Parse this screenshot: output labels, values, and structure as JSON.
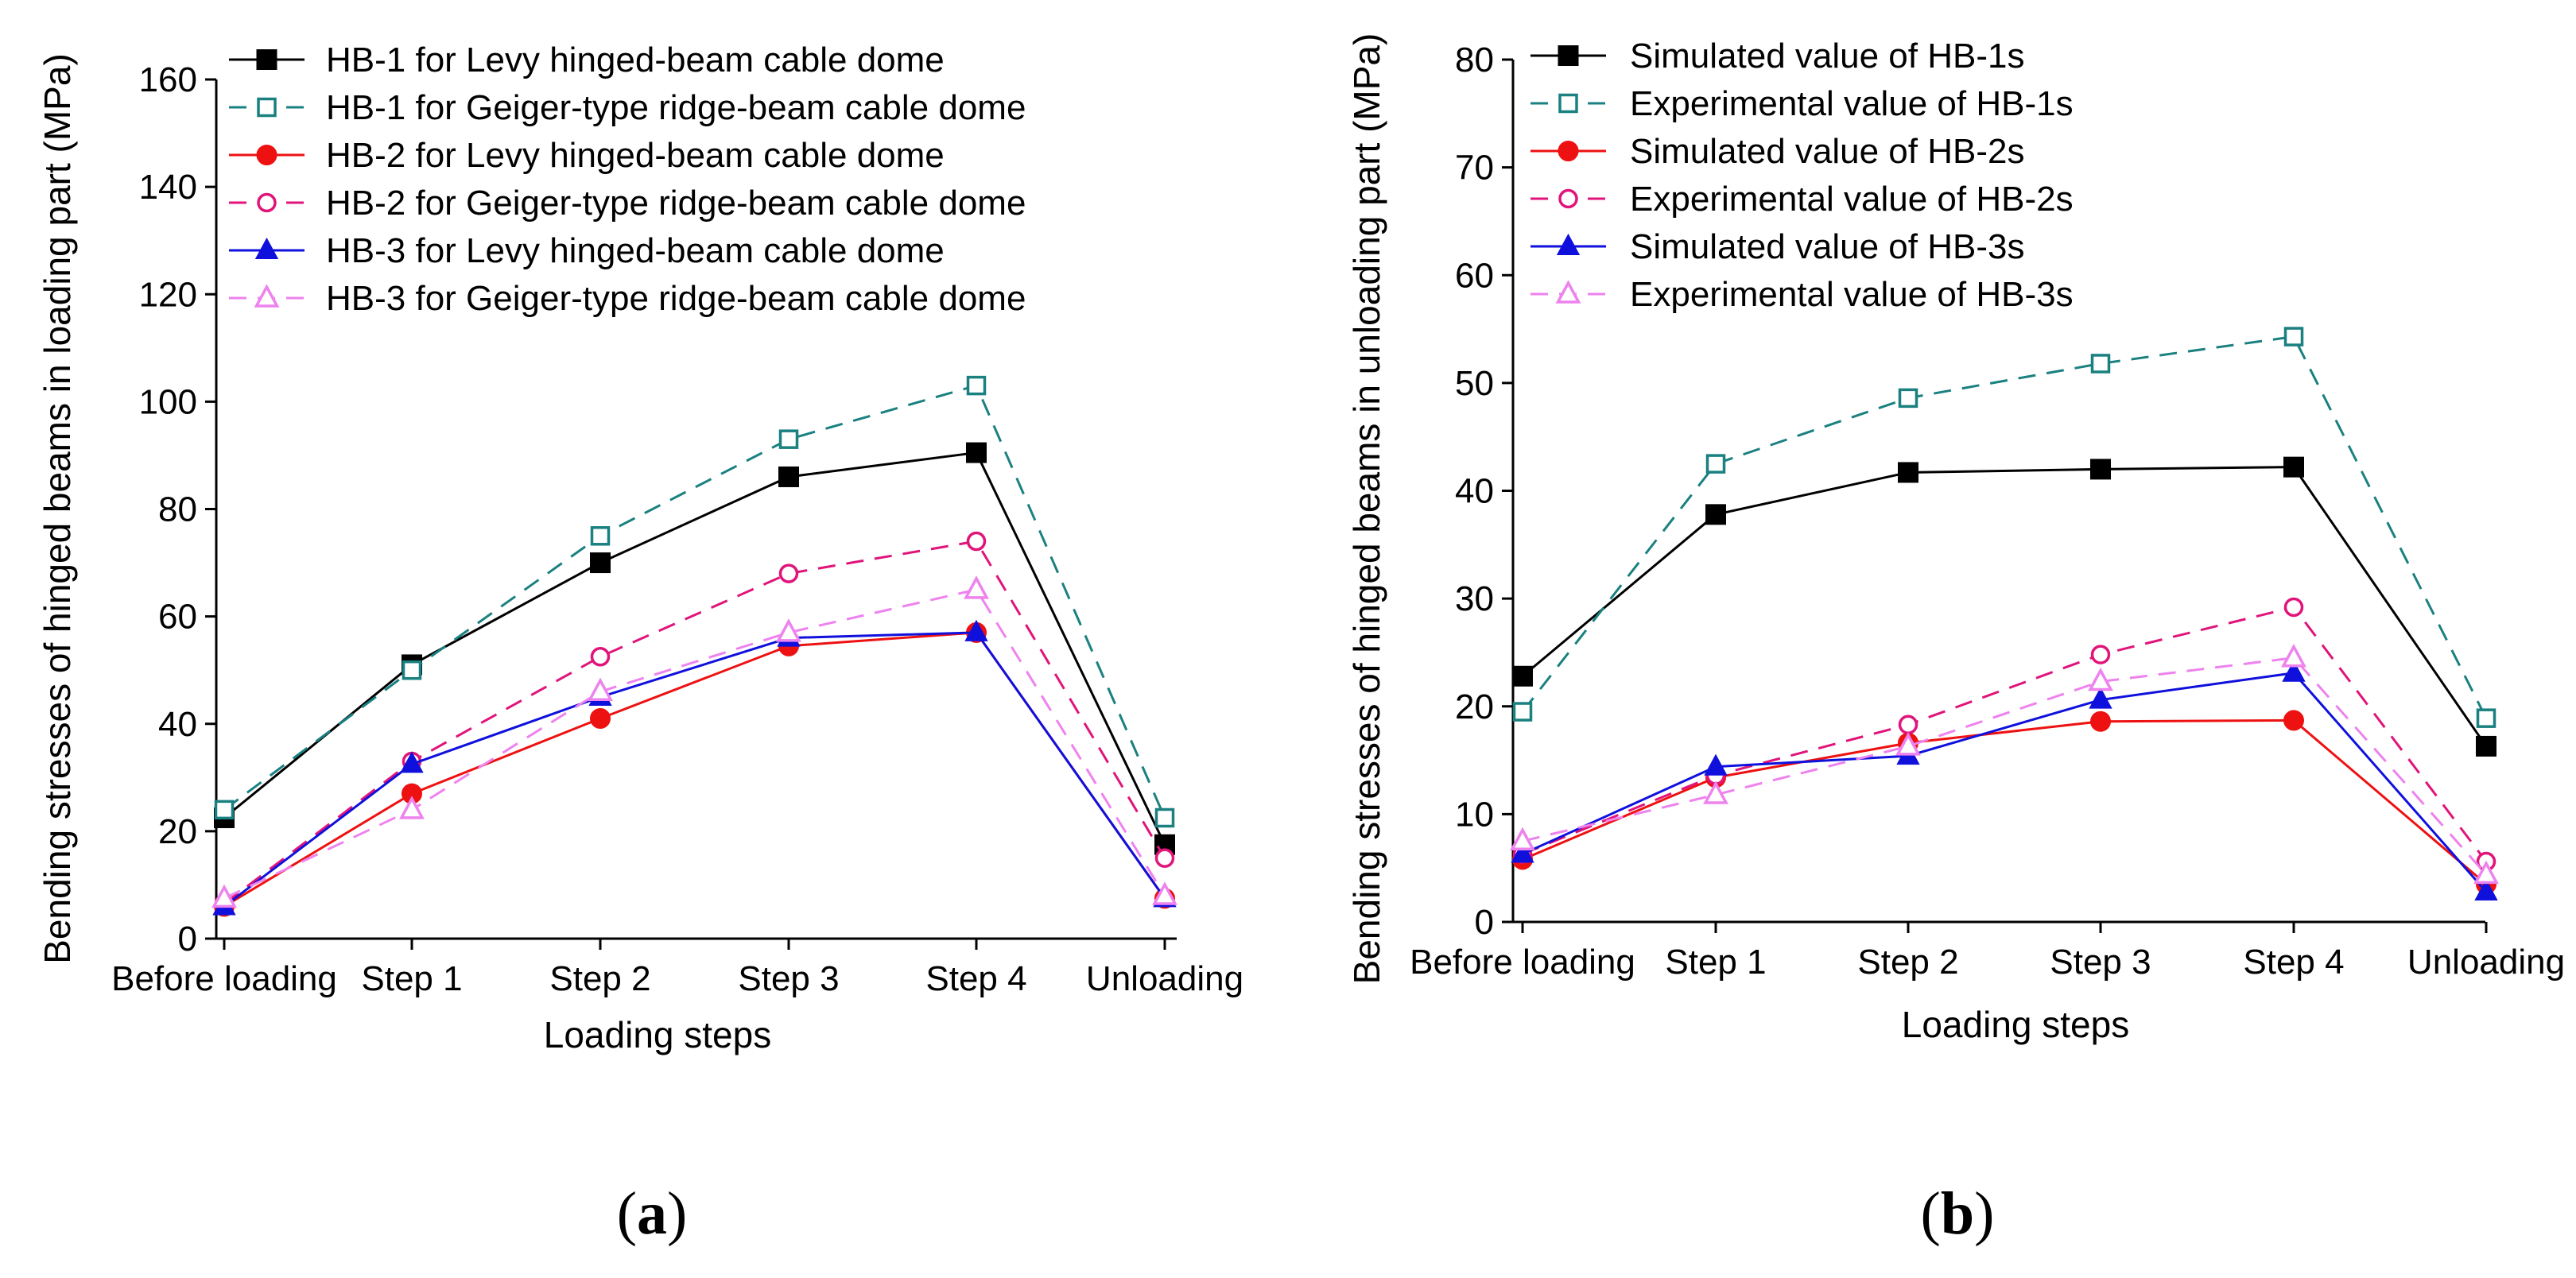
{
  "figure": {
    "panel_a_letter": "a",
    "panel_b_letter": "b"
  },
  "chart_data": [
    {
      "type": "line",
      "title": "",
      "xlabel": "Loading steps",
      "ylabel": "Bending stresses of hinged beams in loading part (MPa)",
      "categories": [
        "Before loading",
        "Step 1",
        "Step 2",
        "Step 3",
        "Step 4",
        "Unloading"
      ],
      "ylim": [
        0,
        160
      ],
      "yticks": [
        0,
        20,
        40,
        60,
        80,
        100,
        120,
        140,
        160
      ],
      "legend_position": "top-left",
      "series": [
        {
          "name": "HB-1 for Levy hinged-beam cable dome",
          "values": [
            22.5,
            51,
            70,
            86,
            90.5,
            17.5
          ],
          "color": "#000000",
          "dash": "solid",
          "marker": "square-filled"
        },
        {
          "name": "HB-1 for Geiger-type ridge-beam cable dome",
          "values": [
            24,
            50,
            75,
            93,
            103,
            22.5
          ],
          "color": "#1a8080",
          "dash": "dashed",
          "marker": "square-open"
        },
        {
          "name": "HB-2 for Levy hinged-beam cable dome",
          "values": [
            6,
            27,
            41,
            54.5,
            57,
            7.5
          ],
          "color": "#ee1111",
          "dash": "solid",
          "marker": "circle-filled"
        },
        {
          "name": "HB-2 for Geiger-type ridge-beam cable dome",
          "values": [
            6.5,
            33,
            52.5,
            68,
            74,
            15
          ],
          "color": "#e0147a",
          "dash": "dashed",
          "marker": "circle-open"
        },
        {
          "name": "HB-3 for Levy hinged-beam cable dome",
          "values": [
            6,
            32.5,
            45,
            56,
            57,
            7.5
          ],
          "color": "#1010dd",
          "dash": "solid",
          "marker": "triangle-filled"
        },
        {
          "name": "HB-3 for Geiger-type ridge-beam cable dome",
          "values": [
            7.5,
            24,
            46,
            57,
            65,
            8
          ],
          "color": "#ee82ee",
          "dash": "dashed",
          "marker": "triangle-open"
        }
      ]
    },
    {
      "type": "line",
      "title": "",
      "xlabel": "Loading steps",
      "ylabel": "Bending stresses of hinged beams in unloading part (MPa)",
      "categories": [
        "Before loading",
        "Step 1",
        "Step 2",
        "Step 3",
        "Step 4",
        "Unloading"
      ],
      "ylim": [
        0,
        80
      ],
      "yticks": [
        0,
        10,
        20,
        30,
        40,
        50,
        60,
        70,
        80
      ],
      "legend_position": "top-left",
      "series": [
        {
          "name": "Simulated value of HB-1s",
          "values": [
            22.8,
            37.8,
            41.7,
            42,
            42.2,
            16.3
          ],
          "color": "#000000",
          "dash": "solid",
          "marker": "square-filled"
        },
        {
          "name": "Experimental value of HB-1s",
          "values": [
            19.5,
            42.5,
            48.6,
            51.8,
            54.3,
            18.9
          ],
          "color": "#1a8080",
          "dash": "dashed",
          "marker": "square-open"
        },
        {
          "name": "Simulated value of HB-2s",
          "values": [
            5.8,
            13.4,
            16.6,
            18.6,
            18.7,
            3.5
          ],
          "color": "#ee1111",
          "dash": "solid",
          "marker": "circle-filled"
        },
        {
          "name": "Experimental value of HB-2s",
          "values": [
            6.3,
            13.6,
            18.3,
            24.8,
            29.2,
            5.6
          ],
          "color": "#e0147a",
          "dash": "dashed",
          "marker": "circle-open"
        },
        {
          "name": "Simulated value of HB-3s",
          "values": [
            6.3,
            14.4,
            15.4,
            20.6,
            23.1,
            2.8
          ],
          "color": "#1010dd",
          "dash": "solid",
          "marker": "triangle-filled"
        },
        {
          "name": "Experimental value of HB-3s",
          "values": [
            7.5,
            11.8,
            16.3,
            22.3,
            24.5,
            4.4
          ],
          "color": "#ee82ee",
          "dash": "dashed",
          "marker": "triangle-open"
        }
      ]
    }
  ]
}
